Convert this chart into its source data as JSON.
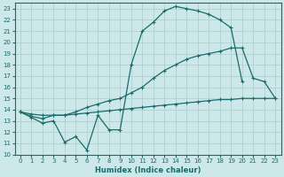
{
  "xlabel": "Humidex (Indice chaleur)",
  "ylabel": "",
  "background_color": "#cde8e8",
  "grid_color": "#b0d0d0",
  "line_color": "#1a6b6b",
  "xlim": [
    -0.5,
    23.5
  ],
  "ylim": [
    10,
    23.5
  ],
  "xticks": [
    0,
    1,
    2,
    3,
    4,
    5,
    6,
    7,
    8,
    9,
    10,
    11,
    12,
    13,
    14,
    15,
    16,
    17,
    18,
    19,
    20,
    21,
    22,
    23
  ],
  "yticks": [
    10,
    11,
    12,
    13,
    14,
    15,
    16,
    17,
    18,
    19,
    20,
    21,
    22,
    23
  ],
  "line1_x": [
    0,
    1,
    2,
    3,
    4,
    5,
    6,
    7,
    8,
    9,
    10,
    11,
    12,
    13,
    14,
    15,
    16,
    17,
    18,
    19,
    20,
    21,
    22,
    23
  ],
  "line1_y": [
    13.8,
    13.3,
    12.8,
    13.0,
    11.1,
    11.6,
    10.4,
    13.5,
    12.2,
    12.2,
    18.0,
    21.0,
    21.8,
    22.8,
    23.2,
    23.0,
    22.8,
    22.5,
    22.0,
    21.3,
    16.5,
    null,
    null,
    null
  ],
  "line2_x": [
    0,
    1,
    2,
    3,
    4,
    5,
    6,
    7,
    8,
    9,
    10,
    11,
    12,
    13,
    14,
    15,
    16,
    17,
    18,
    19,
    20,
    21,
    22,
    23
  ],
  "line2_y": [
    13.8,
    13.4,
    13.2,
    13.5,
    13.5,
    13.8,
    14.2,
    14.5,
    14.8,
    15.0,
    15.5,
    16.0,
    16.8,
    17.5,
    18.0,
    18.5,
    18.8,
    19.0,
    19.2,
    19.5,
    19.5,
    16.8,
    16.5,
    15.0
  ],
  "line3_x": [
    0,
    1,
    2,
    3,
    4,
    5,
    6,
    7,
    8,
    9,
    10,
    11,
    12,
    13,
    14,
    15,
    16,
    17,
    18,
    19,
    20,
    21,
    22,
    23
  ],
  "line3_y": [
    13.8,
    13.6,
    13.5,
    13.5,
    13.5,
    13.6,
    13.7,
    13.8,
    13.9,
    14.0,
    14.1,
    14.2,
    14.3,
    14.4,
    14.5,
    14.6,
    14.7,
    14.8,
    14.9,
    14.9,
    15.0,
    15.0,
    15.0,
    15.0
  ]
}
